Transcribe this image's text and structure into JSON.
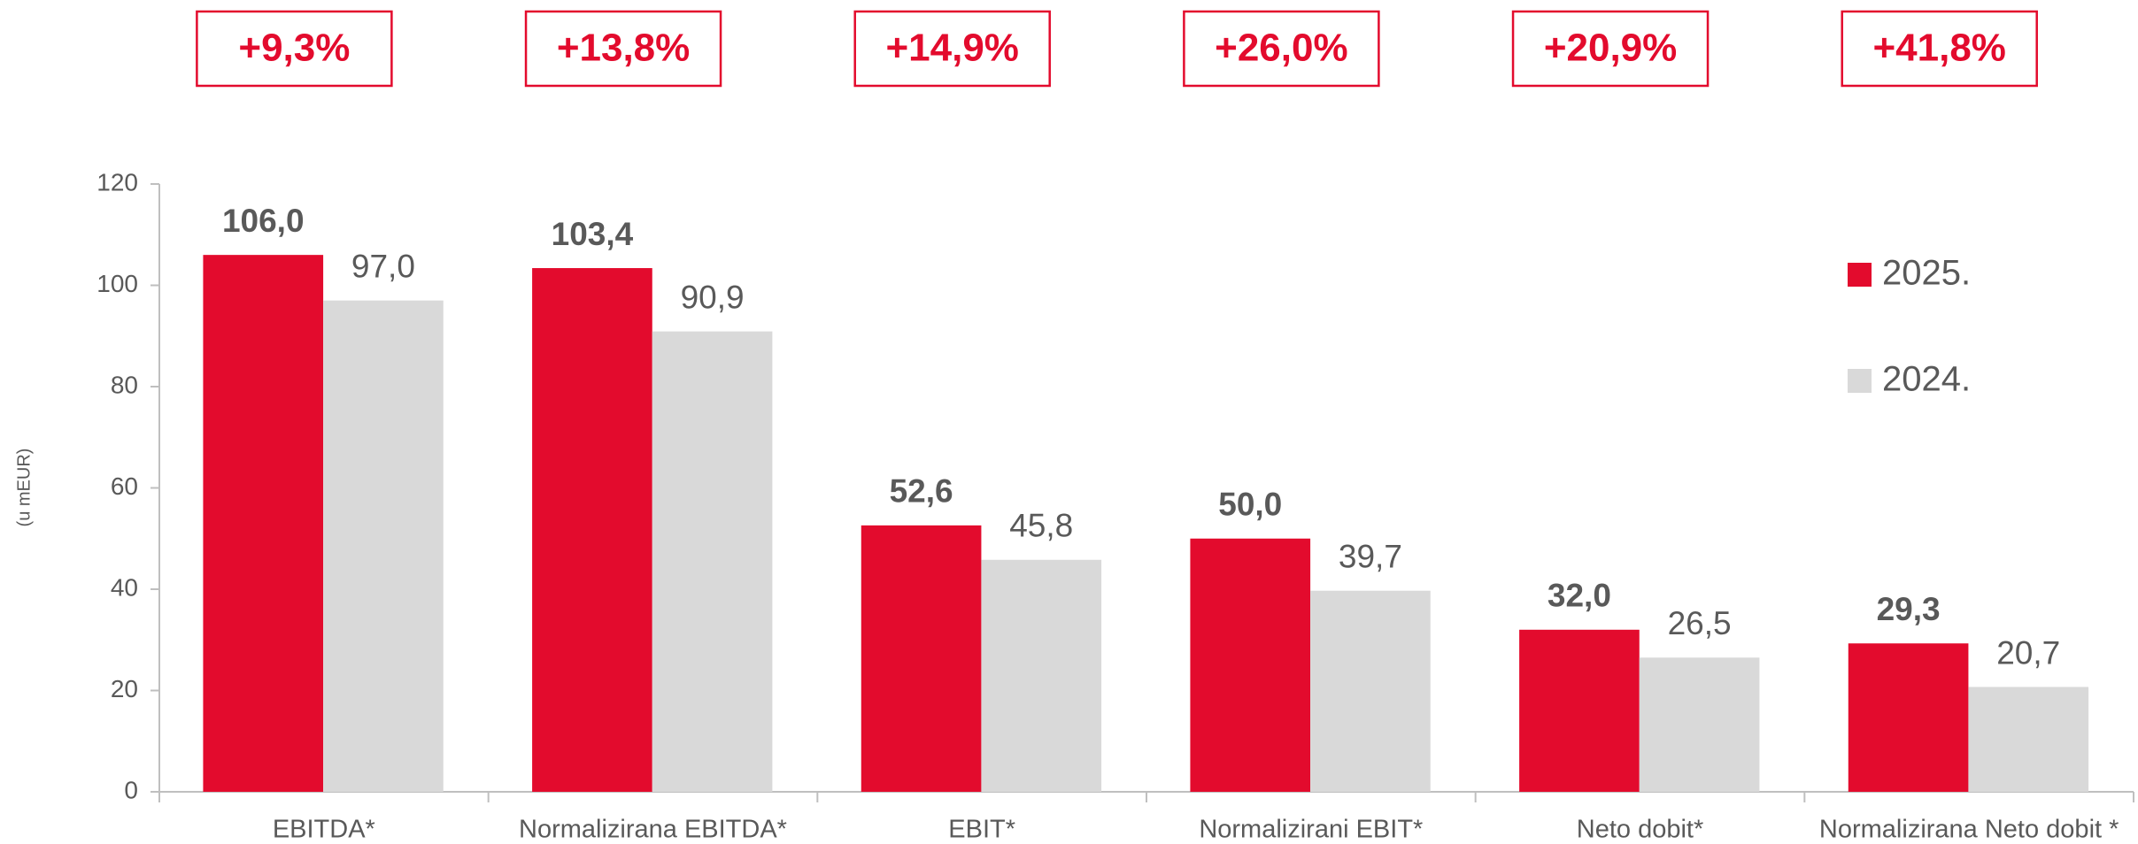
{
  "chart_data": {
    "type": "bar",
    "ylabel": "(u mEUR)",
    "categories": [
      "EBITDA*",
      "Normalizirana EBITDA*",
      "EBIT*",
      "Normalizirani EBIT*",
      "Neto dobit*",
      "Normalizirana Neto dobit *"
    ],
    "series": [
      {
        "name": "2025.",
        "color": "#e30b2d",
        "values": [
          106.0,
          103.4,
          52.6,
          50.0,
          32.0,
          29.3
        ],
        "value_labels": [
          "106,0",
          "103,4",
          "52,6",
          "50,0",
          "32,0",
          "29,3"
        ]
      },
      {
        "name": "2024.",
        "color": "#d9d9d9",
        "values": [
          97.0,
          90.9,
          45.8,
          39.7,
          26.5,
          20.7
        ],
        "value_labels": [
          "97,0",
          "90,9",
          "45,8",
          "39,7",
          "26,5",
          "20,7"
        ]
      }
    ],
    "annotations": [
      "+9,3%",
      "+13,8%",
      "+14,9%",
      "+26,0%",
      "+20,9%",
      "+41,8%"
    ],
    "ylim": [
      0,
      120
    ],
    "yticks": [
      0,
      20,
      40,
      60,
      80,
      100,
      120
    ],
    "grid": false,
    "legend": "right"
  }
}
